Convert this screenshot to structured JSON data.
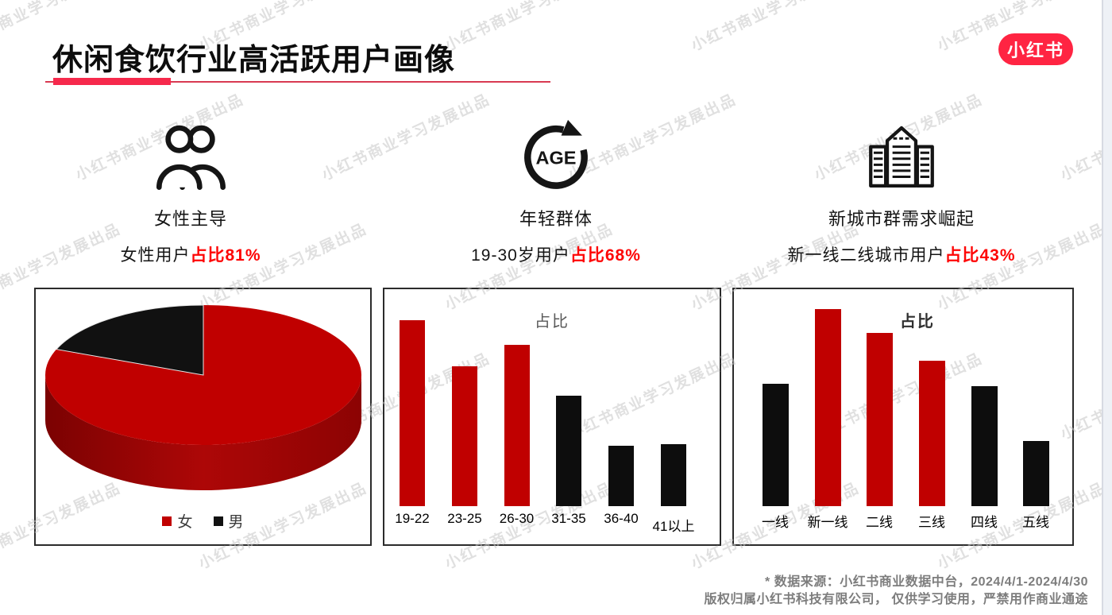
{
  "header": {
    "title": "休闲食饮行业高活跃用户画像",
    "logo_text": "小红书"
  },
  "watermark": {
    "text": "小红书商业学习发展出品"
  },
  "stats": [
    {
      "icon": "two-users-icon",
      "heading": "女性主导",
      "desc_prefix": "女性用户",
      "desc_accent": "占比81%"
    },
    {
      "icon": "age-cycle-icon",
      "heading": "年轻群体",
      "desc_prefix": "19-30岁用户",
      "desc_accent": "占比68%"
    },
    {
      "icon": "city-buildings-icon",
      "heading": "新城市群需求崛起",
      "desc_prefix": "新一线二线城市用户",
      "desc_accent": "占比43%"
    }
  ],
  "chart_data": [
    {
      "type": "pie",
      "style": "3d",
      "title": "",
      "labels": [
        "女",
        "男"
      ],
      "values": [
        81,
        19
      ],
      "colors": [
        "#c00000",
        "#111111"
      ],
      "legend_position": "bottom"
    },
    {
      "type": "bar",
      "title": "占比",
      "categories": [
        "19-22",
        "23-25",
        "26-30",
        "31-35",
        "36-40",
        "41以上"
      ],
      "values": [
        26,
        19.6,
        22.6,
        15.4,
        8.4,
        8.7
      ],
      "colors": [
        "#c00000",
        "#c00000",
        "#c00000",
        "#0d0d0d",
        "#0d0d0d",
        "#0d0d0d"
      ],
      "xlabel": "",
      "ylabel": "",
      "ylim": [
        0,
        28
      ],
      "grid": false,
      "legend": false
    },
    {
      "type": "bar",
      "title": "占比",
      "categories": [
        "一线",
        "新一线",
        "二线",
        "三线",
        "四线",
        "五线"
      ],
      "values": [
        14.3,
        23,
        20.2,
        17,
        14,
        7.6
      ],
      "colors": [
        "#0d0d0d",
        "#c00000",
        "#c00000",
        "#c00000",
        "#0d0d0d",
        "#0d0d0d"
      ],
      "xlabel": "",
      "ylabel": "",
      "ylim": [
        0,
        25
      ],
      "grid": false,
      "legend": false
    }
  ],
  "footer": {
    "line1": "* 数据来源：小红书商业数据中台，2024/4/1-2024/4/30",
    "line2": "版权归属小红书科技有限公司， 仅供学习使用，严禁用作商业通途"
  },
  "colors": {
    "brand_red": "#ff2442",
    "accent_text_red": "#fe0505",
    "bar_red": "#c00000",
    "bar_black": "#0d0d0d",
    "pie_side_dark": "#7b0202",
    "underline_red": "#f6294c",
    "watermark_gray": "#c7c7c7",
    "footer_gray": "#7d7d7d"
  }
}
